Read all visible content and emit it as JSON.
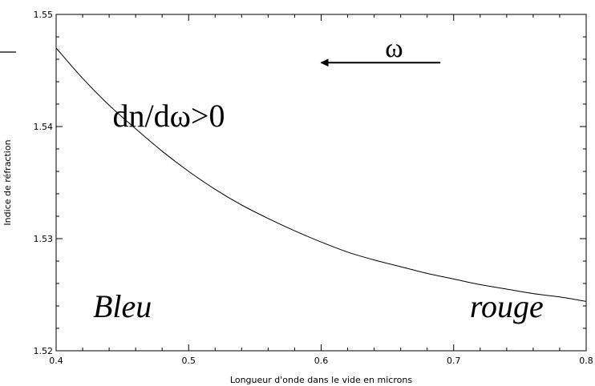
{
  "chart_data": {
    "type": "line",
    "xlabel": "Longueur d'onde dans le vide en microns",
    "ylabel": "Indice de réfraction",
    "xlim": [
      0.4,
      0.8
    ],
    "ylim": [
      1.52,
      1.55
    ],
    "xticks": [
      0.4,
      0.5,
      0.6,
      0.7,
      0.8
    ],
    "xtick_labels": [
      "0.4",
      "0.5",
      "0.6",
      "0.7",
      "0.8"
    ],
    "yticks": [
      1.52,
      1.53,
      1.54,
      1.55
    ],
    "ytick_labels": [
      "1.52",
      "1.53",
      "1.54",
      "1.55"
    ],
    "grid": false,
    "series": [
      {
        "x": [
          0.4,
          0.42,
          0.44,
          0.46,
          0.48,
          0.5,
          0.52,
          0.54,
          0.56,
          0.58,
          0.6,
          0.62,
          0.64,
          0.66,
          0.68,
          0.7,
          0.72,
          0.74,
          0.76,
          0.78,
          0.8
        ],
        "y": [
          1.547,
          1.5443,
          1.5419,
          1.5398,
          1.5378,
          1.536,
          1.5344,
          1.533,
          1.5318,
          1.5307,
          1.5297,
          1.5288,
          1.5281,
          1.5275,
          1.5269,
          1.5264,
          1.5259,
          1.5255,
          1.5251,
          1.5248,
          1.5244
        ],
        "color": "#000000"
      }
    ],
    "annotations": [
      {
        "text": "ω",
        "x": 0.655,
        "y": 1.5462,
        "size": 34,
        "color": "#000000",
        "italic": false
      },
      {
        "text": "dn/dω>0",
        "x": 0.485,
        "y": 1.54,
        "size": 40,
        "color": "#000000",
        "italic": false
      },
      {
        "text": "Bleu",
        "x": 0.45,
        "y": 1.523,
        "size": 40,
        "color": "#3333bb",
        "italic": true
      },
      {
        "text": "rouge",
        "x": 0.74,
        "y": 1.523,
        "size": 40,
        "color": "#ee1111",
        "italic": true
      }
    ],
    "arrow": {
      "from": [
        0.69,
        1.5457
      ],
      "to": [
        0.6,
        1.5457
      ],
      "color": "#000000"
    }
  }
}
